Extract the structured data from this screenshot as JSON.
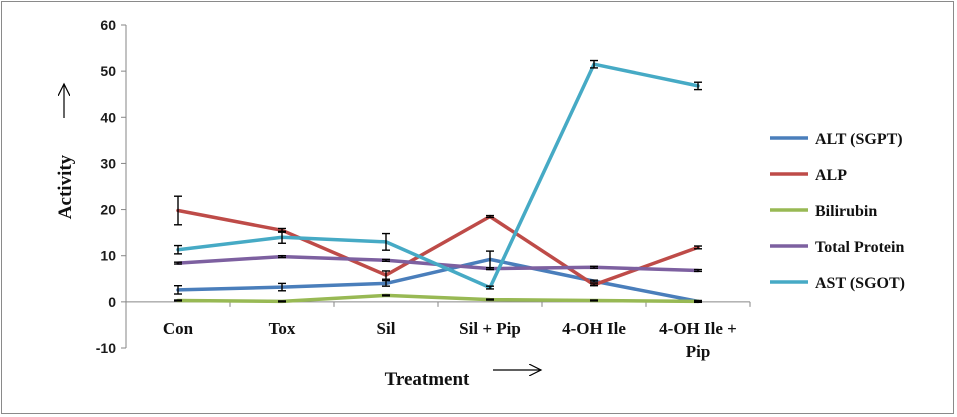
{
  "chart_data": {
    "type": "line",
    "categories": [
      [
        "Con"
      ],
      [
        "Tox"
      ],
      [
        "Sil"
      ],
      [
        "Sil + Pip"
      ],
      [
        "4-OH Ile"
      ],
      [
        "4-OH Ile +",
        "Pip"
      ]
    ],
    "xlabel": "Treatment",
    "ylabel": "Activity",
    "ylim": [
      -10,
      60
    ],
    "yticks": [
      -10,
      0,
      10,
      20,
      30,
      40,
      50,
      60
    ],
    "grid": false,
    "legend_position": "right",
    "series": [
      {
        "name": "ALT (SGPT)",
        "color": "#4a7ebb",
        "values": [
          2.6,
          3.2,
          4.0,
          9.2,
          4.5,
          0.1
        ],
        "errors": [
          0.9,
          0.8,
          0.6,
          1.8,
          0.2,
          0.2
        ]
      },
      {
        "name": "ALP",
        "color": "#be4b48",
        "values": [
          19.8,
          15.5,
          5.8,
          18.5,
          3.7,
          11.8
        ],
        "errors": [
          3.1,
          0.4,
          0.9,
          0.2,
          0.2,
          0.3
        ]
      },
      {
        "name": "Bilirubin",
        "color": "#98b954",
        "values": [
          0.3,
          0.1,
          1.4,
          0.5,
          0.3,
          0.1
        ],
        "errors": [
          0.1,
          0.1,
          0.1,
          0.1,
          0.1,
          0.1
        ]
      },
      {
        "name": "Total Protein",
        "color": "#7d60a0",
        "values": [
          8.4,
          9.8,
          9.0,
          7.2,
          7.5,
          6.8
        ],
        "errors": [
          0.2,
          0.2,
          0.2,
          0.2,
          0.2,
          0.2
        ]
      },
      {
        "name": "AST (SGOT)",
        "color": "#46aac5",
        "values": [
          11.3,
          14.0,
          13.0,
          3.1,
          51.5,
          46.8
        ],
        "errors": [
          0.9,
          1.3,
          1.8,
          0.3,
          0.8,
          0.8
        ]
      }
    ]
  }
}
